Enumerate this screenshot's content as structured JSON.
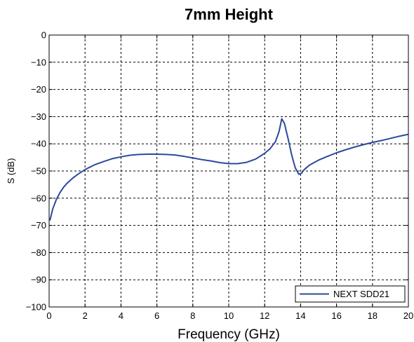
{
  "chart_data": {
    "type": "line",
    "title": "7mm Height",
    "xlabel": "Frequency (GHz)",
    "ylabel": "S (dB)",
    "xlim": [
      0,
      20
    ],
    "ylim": [
      -100,
      0
    ],
    "xticks": [
      0,
      2,
      4,
      6,
      8,
      10,
      12,
      14,
      16,
      18,
      20
    ],
    "yticks": [
      0,
      -10,
      -20,
      -30,
      -40,
      -50,
      -60,
      -70,
      -80,
      -90,
      -100
    ],
    "xtick_labels": [
      "0",
      "2",
      "4",
      "6",
      "8",
      "10",
      "12",
      "14",
      "16",
      "18",
      "20"
    ],
    "ytick_labels": [
      "0",
      "−10",
      "−20",
      "−30",
      "−40",
      "−50",
      "−60",
      "−70",
      "−80",
      "−90",
      "−100"
    ],
    "grid": true,
    "legend_position": "bottom-right",
    "series": [
      {
        "name": "NEXT SDD21",
        "color": "#2b4a9a",
        "x": [
          0.05,
          0.2,
          0.4,
          0.6,
          0.8,
          1.0,
          1.3,
          1.6,
          2.0,
          2.5,
          3.0,
          3.5,
          4.0,
          4.5,
          5.0,
          5.5,
          6.0,
          6.5,
          7.0,
          7.5,
          8.0,
          8.5,
          9.0,
          9.5,
          10.0,
          10.5,
          11.0,
          11.5,
          12.0,
          12.3,
          12.6,
          12.8,
          12.95,
          13.1,
          13.3,
          13.5,
          13.7,
          13.9,
          14.05,
          14.2,
          14.5,
          15.0,
          15.5,
          16.0,
          16.5,
          17.0,
          17.5,
          18.0,
          18.5,
          19.0,
          19.5,
          20.0
        ],
        "y": [
          -68,
          -64,
          -60.5,
          -58,
          -56,
          -54.5,
          -52.7,
          -51.2,
          -49.5,
          -47.8,
          -46.6,
          -45.5,
          -44.8,
          -44.2,
          -43.9,
          -43.8,
          -43.8,
          -43.9,
          -44.1,
          -44.6,
          -45.2,
          -45.8,
          -46.3,
          -46.9,
          -47.3,
          -47.3,
          -46.8,
          -45.6,
          -43.5,
          -41.8,
          -39.2,
          -35.5,
          -30.8,
          -32.5,
          -38,
          -44,
          -48.8,
          -51.2,
          -50.8,
          -49.5,
          -47.8,
          -46,
          -44.6,
          -43.3,
          -42.2,
          -41.2,
          -40.3,
          -39.5,
          -38.8,
          -38.0,
          -37.2,
          -36.5
        ]
      }
    ]
  }
}
